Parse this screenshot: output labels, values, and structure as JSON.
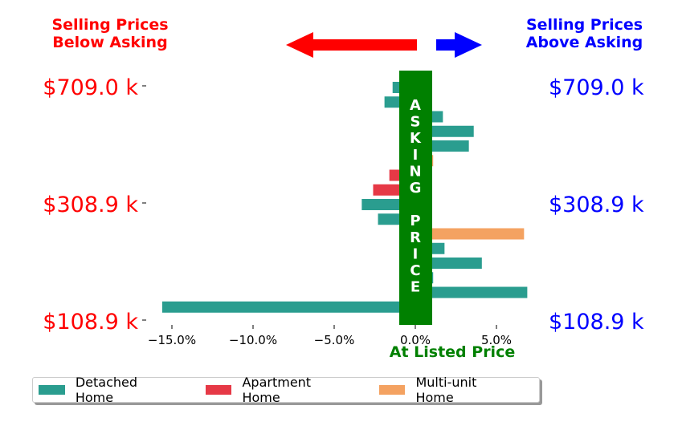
{
  "header_left": [
    "Selling Prices",
    "Below Asking"
  ],
  "header_right": [
    "Selling Prices",
    "Above Asking"
  ],
  "colors": {
    "left_text": "#ff0000",
    "right_text": "#0000ff",
    "asking_bar": "#008000",
    "left_arrow": "#ff0000",
    "right_arrow": "#0000ff"
  },
  "asking_label": [
    "A",
    "S",
    "K",
    "I",
    "N",
    "G",
    "",
    "P",
    "R",
    "I",
    "C",
    "E"
  ],
  "listed_price_label": "At Listed Price",
  "chart_data": {
    "type": "bar",
    "orientation": "horizontal",
    "x_ticks": [
      -15.0,
      -10.0,
      -5.0,
      0.0,
      5.0
    ],
    "x_tick_labels": [
      "−15.0%",
      "−10.0%",
      "−5.0%",
      "0.0%",
      "5.0%"
    ],
    "xlim": [
      -16.8,
      8.0
    ],
    "y_tick_labels_left": [
      "$709.0 k",
      "$308.9 k",
      "$108.9 k"
    ],
    "y_tick_labels_right": [
      "$709.0 k",
      "$308.9 k",
      "$108.9 k"
    ],
    "y_tick_rows": [
      0,
      8,
      16
    ],
    "legend_location": "bottom",
    "series": [
      {
        "name": "Detached Home",
        "color": "#2a9d8f"
      },
      {
        "name": "Apartment Home",
        "color": "#e63946"
      },
      {
        "name": "Multi-unit Home",
        "color": "#f4a261"
      }
    ],
    "bars": [
      {
        "row": 0,
        "series": "Detached Home",
        "value": -1.4
      },
      {
        "row": 1,
        "series": "Detached Home",
        "value": -1.9
      },
      {
        "row": 2,
        "series": "Detached Home",
        "value": 1.7
      },
      {
        "row": 3,
        "series": "Detached Home",
        "value": 3.6
      },
      {
        "row": 4,
        "series": "Detached Home",
        "value": 3.3
      },
      {
        "row": 5,
        "series": "Multi-unit Home",
        "value": 1.1
      },
      {
        "row": 6,
        "series": "Apartment Home",
        "value": -1.6
      },
      {
        "row": 7,
        "series": "Apartment Home",
        "value": -2.6
      },
      {
        "row": 8,
        "series": "Detached Home",
        "value": -3.3
      },
      {
        "row": 9,
        "series": "Detached Home",
        "value": -2.3
      },
      {
        "row": 10,
        "series": "Multi-unit Home",
        "value": 6.7
      },
      {
        "row": 11,
        "series": "Detached Home",
        "value": 1.8
      },
      {
        "row": 12,
        "series": "Detached Home",
        "value": 4.1
      },
      {
        "row": 13,
        "series": "Detached Home",
        "value": 1.1
      },
      {
        "row": 14,
        "series": "Detached Home",
        "value": 6.9
      },
      {
        "row": 15,
        "series": "Detached Home",
        "value": -15.6
      }
    ]
  }
}
